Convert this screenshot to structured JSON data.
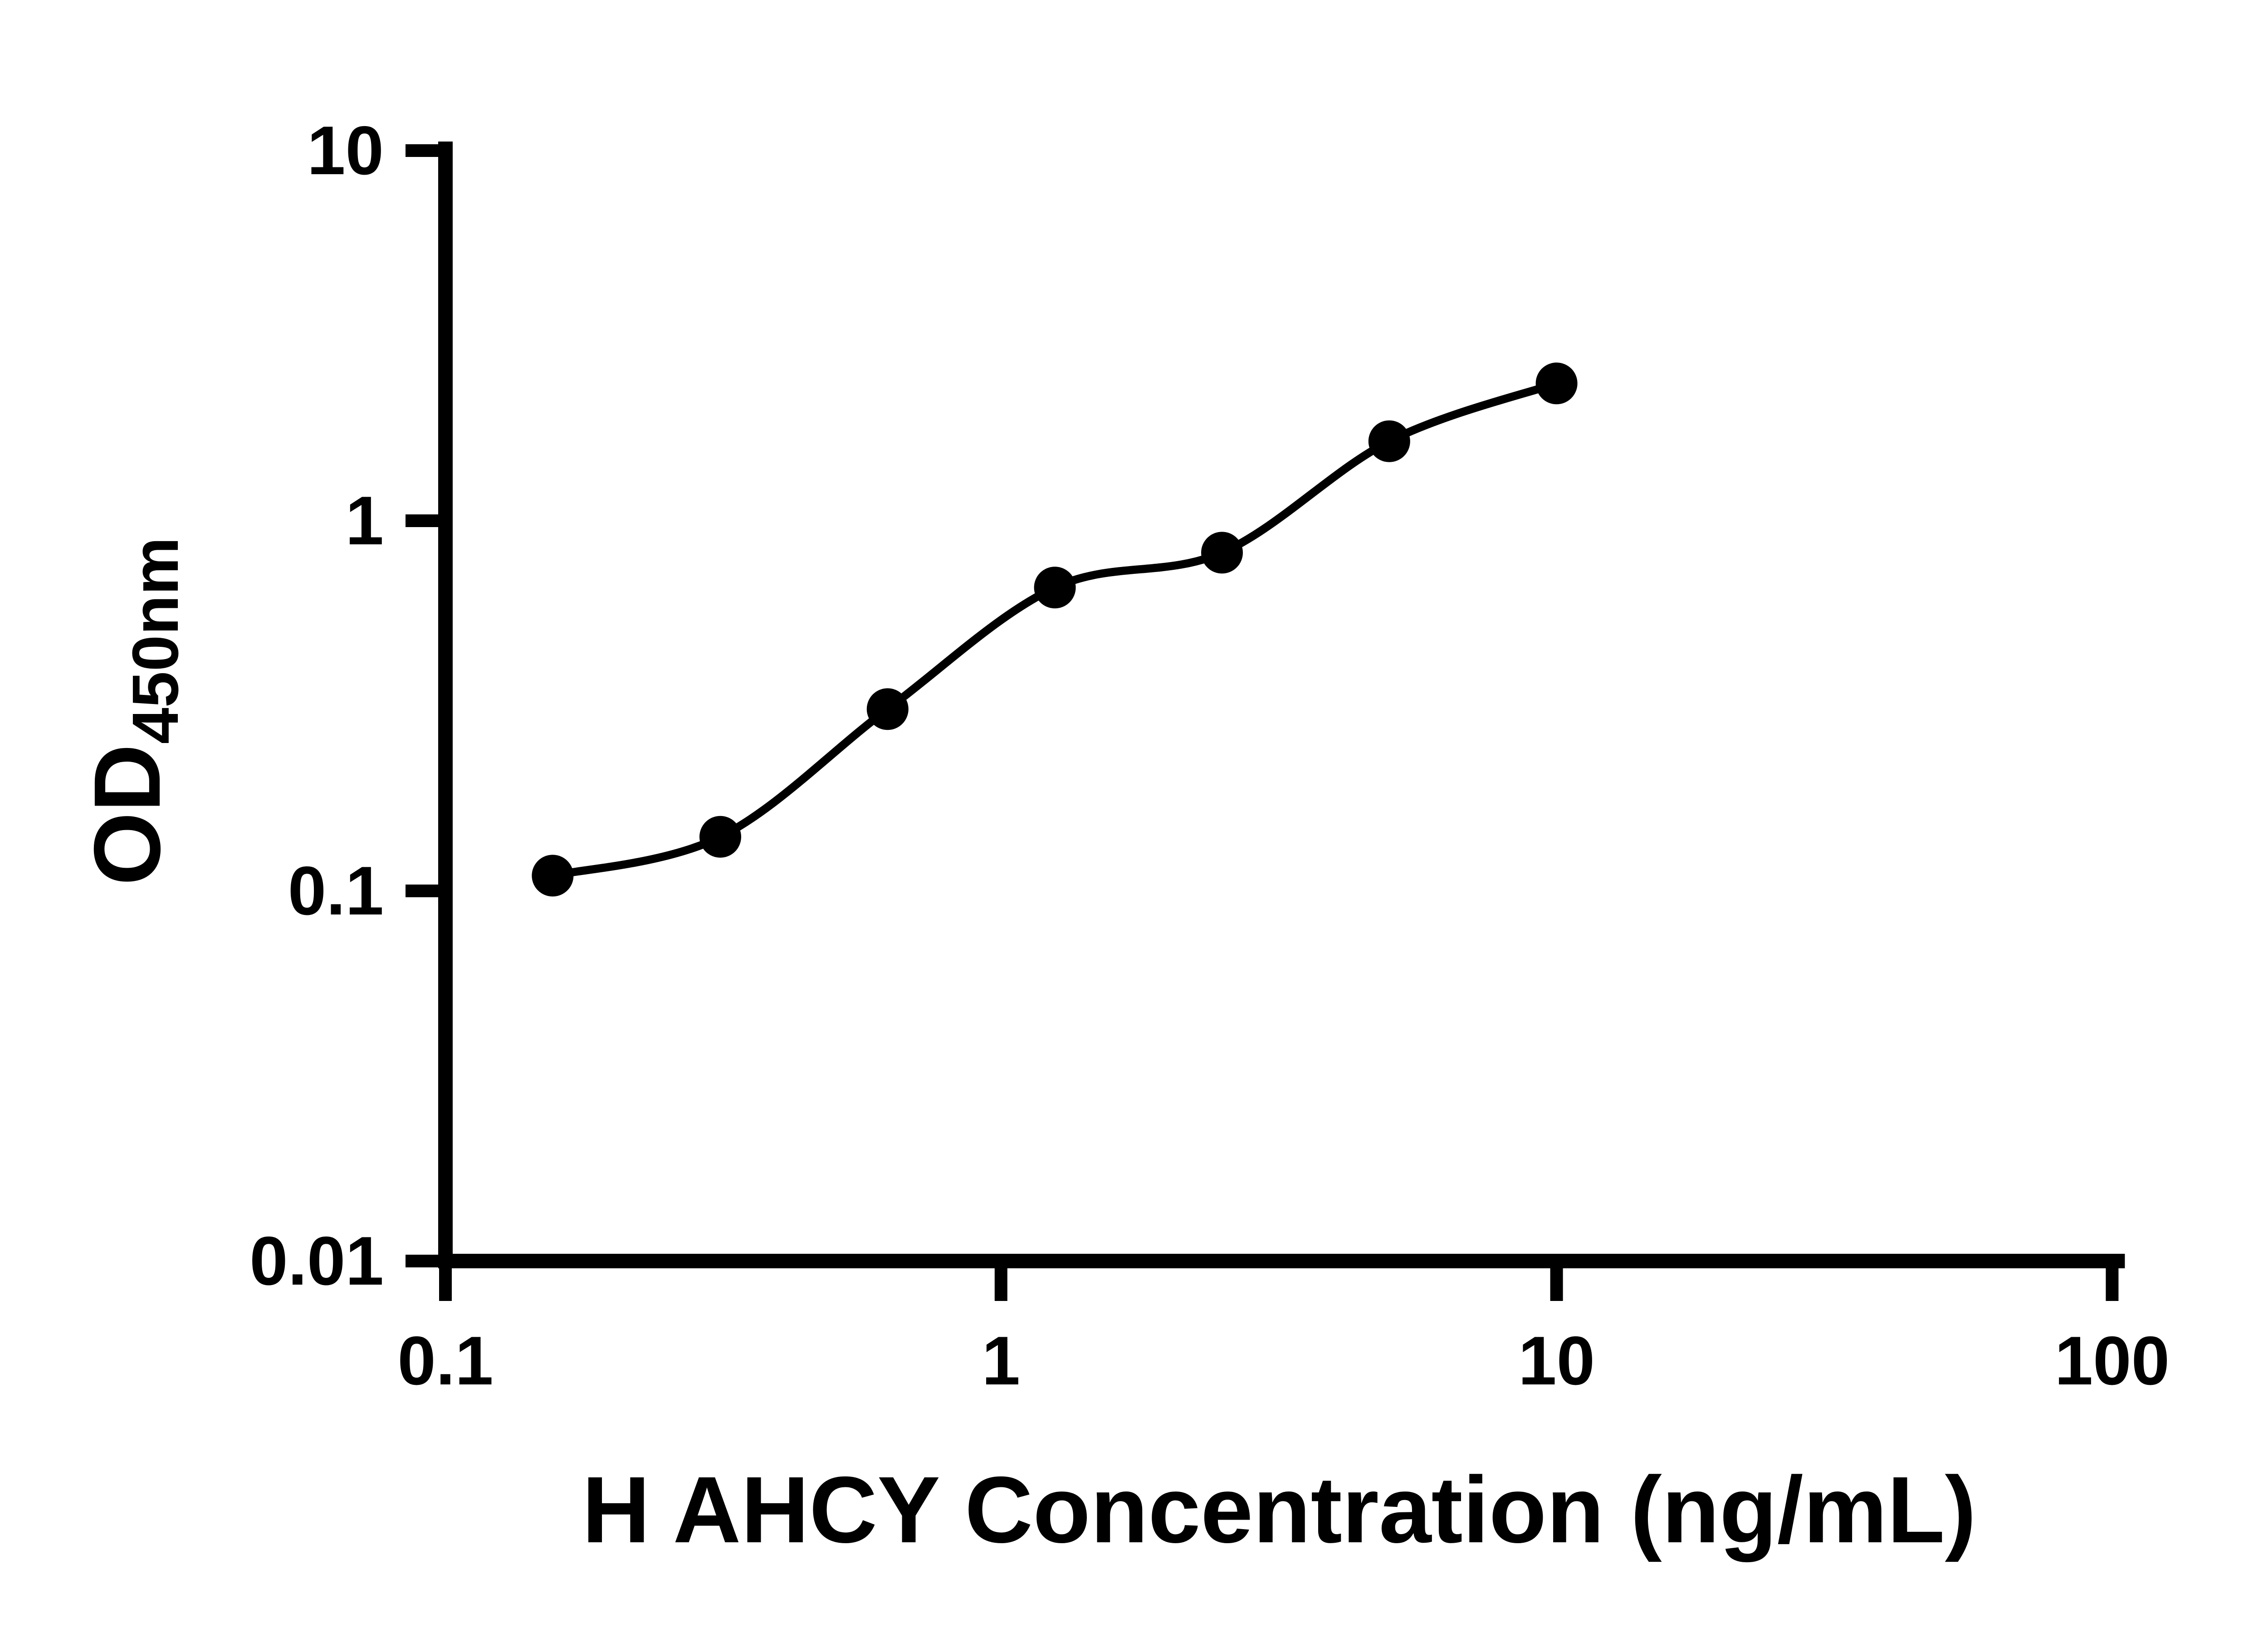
{
  "chart_data": {
    "type": "scatter",
    "subtype": "elisa-standard-curve-with-fit-line",
    "xlabel": "H AHCY Concentration (ng/mL)",
    "ylabel": "OD450nm",
    "ylabel_main": "OD",
    "ylabel_sub": "450nm",
    "x_scale": "log10",
    "y_scale": "log10",
    "xlim": [
      0.1,
      100
    ],
    "ylim": [
      0.01,
      10
    ],
    "grid": false,
    "legend": false,
    "x_ticks": [
      {
        "value": 0.1,
        "label": "0.1"
      },
      {
        "value": 1,
        "label": "1"
      },
      {
        "value": 10,
        "label": "10"
      },
      {
        "value": 100,
        "label": "100"
      }
    ],
    "y_ticks": [
      {
        "value": 0.01,
        "label": "0.01"
      },
      {
        "value": 0.1,
        "label": "0.1"
      },
      {
        "value": 1,
        "label": "1"
      },
      {
        "value": 10,
        "label": "10"
      }
    ],
    "series": [
      {
        "marker": "filled-circle",
        "color": "#000000",
        "fit_line": true,
        "points": [
          {
            "x": 0.156,
            "y": 0.11
          },
          {
            "x": 0.3125,
            "y": 0.14
          },
          {
            "x": 0.625,
            "y": 0.31
          },
          {
            "x": 1.25,
            "y": 0.66
          },
          {
            "x": 2.5,
            "y": 0.82
          },
          {
            "x": 5,
            "y": 1.64
          },
          {
            "x": 10,
            "y": 2.35
          }
        ]
      }
    ],
    "colors": {
      "axis": "#000000",
      "marker": "#000000",
      "line": "#000000",
      "background": "#ffffff"
    }
  }
}
